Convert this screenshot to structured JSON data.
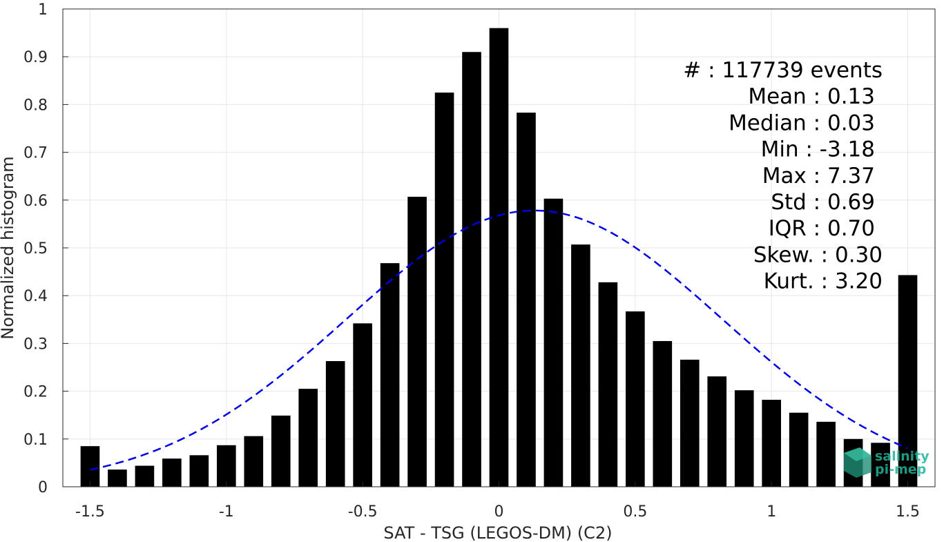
{
  "chart_data": {
    "type": "bar",
    "xlabel": "SAT - TSG (LEGOS-DM) (C2)",
    "ylabel": "Normalized histogram",
    "xlim": [
      -1.6,
      1.6
    ],
    "ylim": [
      0,
      1
    ],
    "xticks": [
      "-1.5",
      "-1",
      "-0.5",
      "0",
      "0.5",
      "1",
      "1.5"
    ],
    "yticks": [
      "0",
      "0.1",
      "0.2",
      "0.3",
      "0.4",
      "0.5",
      "0.6",
      "0.7",
      "0.8",
      "0.9",
      "1"
    ],
    "grid": true,
    "bar_color": "#000000",
    "x": [
      -1.5,
      -1.4,
      -1.3,
      -1.2,
      -1.1,
      -1.0,
      -0.9,
      -0.8,
      -0.7,
      -0.6,
      -0.5,
      -0.4,
      -0.3,
      -0.2,
      -0.1,
      0.0,
      0.1,
      0.2,
      0.3,
      0.4,
      0.5,
      0.6,
      0.7,
      0.8,
      0.9,
      1.0,
      1.1,
      1.2,
      1.3,
      1.4,
      1.5
    ],
    "values": [
      0.085,
      0.036,
      0.044,
      0.059,
      0.066,
      0.087,
      0.106,
      0.149,
      0.205,
      0.263,
      0.342,
      0.468,
      0.607,
      0.825,
      0.91,
      0.96,
      0.783,
      0.603,
      0.507,
      0.428,
      0.367,
      0.305,
      0.266,
      0.231,
      0.202,
      0.182,
      0.155,
      0.136,
      0.1,
      0.092,
      0.443
    ],
    "fit": {
      "type": "gaussian",
      "style": "dashed",
      "color": "#0000e6",
      "mean": 0.13,
      "std": 0.69,
      "x_range": [
        -1.5,
        1.5
      ]
    },
    "annotations": [
      "#  : 117739 events",
      "Mean : 0.13",
      "Median : 0.03",
      "Min : -3.18",
      "Max : 7.37",
      "Std : 0.69",
      "IQR : 0.70",
      "Skew. : 0.30",
      "Kurt. : 3.20"
    ]
  },
  "logo": {
    "line1": "salinity",
    "line2": "pi-mep"
  }
}
